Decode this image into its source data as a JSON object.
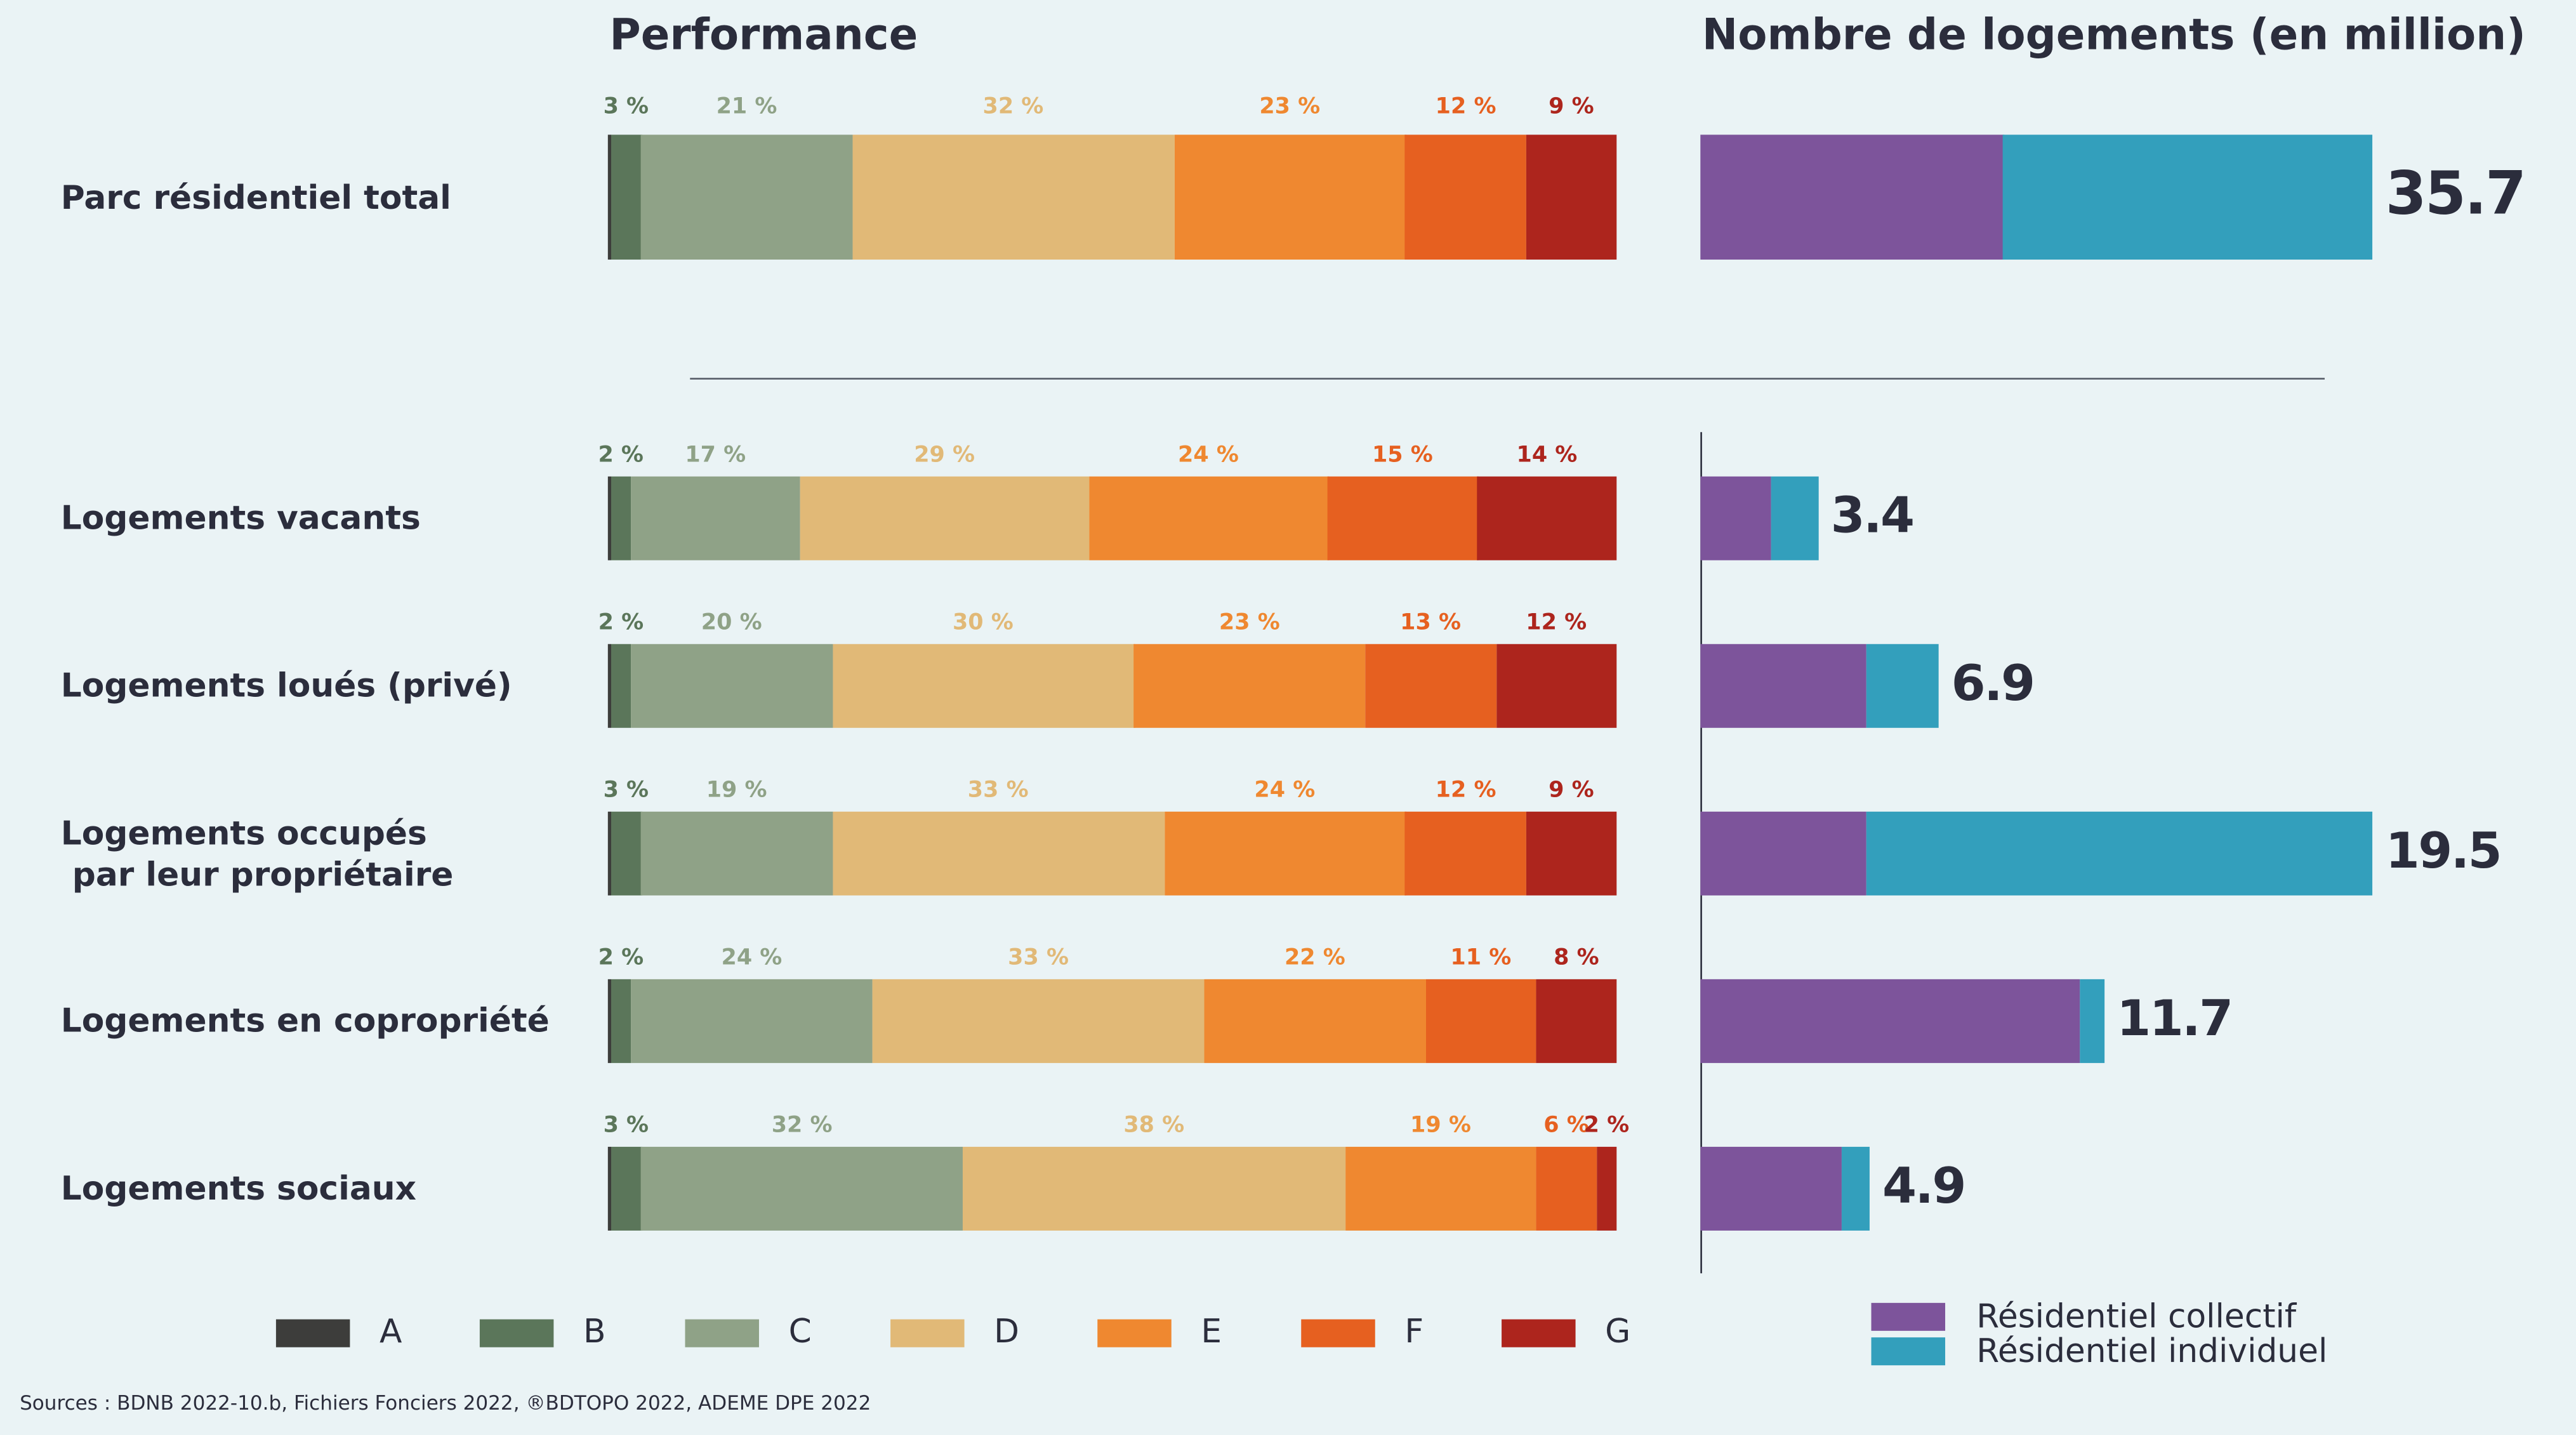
{
  "titles": {
    "performance": "Performance",
    "count": "Nombre de logements (en million)"
  },
  "classes": [
    "A",
    "B",
    "C",
    "D",
    "E",
    "F",
    "G"
  ],
  "class_colors": [
    "#3d3d3b",
    "#5b765a",
    "#8fa287",
    "#e1b977",
    "#ef8830",
    "#e66020",
    "#ad251d"
  ],
  "housing_series": [
    {
      "name": "Résidentiel collectif",
      "color": "#7d549b"
    },
    {
      "name": "Résidentiel individuel",
      "color": "#339fbc"
    }
  ],
  "sources": "Sources : BDNB 2022-10.b, Fichiers Fonciers 2022, ®BDTOPO 2022, ADEME DPE 2022",
  "chart_data": [
    {
      "type": "bar",
      "stacked": true,
      "orientation": "horizontal",
      "title": "Performance",
      "categories": [
        "Parc résidentiel total",
        "Logements vacants",
        "Logements loués (privé)",
        "Logements occupés par leur propriétaire",
        "Logements en copropriété",
        "Logements sociaux"
      ],
      "category_lines": [
        [
          "Parc résidentiel total"
        ],
        [
          "Logements vacants"
        ],
        [
          "Logements loués (privé)"
        ],
        [
          "Logements occupés",
          " par leur propriétaire"
        ],
        [
          "Logements en copropriété"
        ],
        [
          "Logements sociaux"
        ]
      ],
      "series_names": [
        "A",
        "B",
        "C",
        "D",
        "E",
        "F",
        "G"
      ],
      "values_percent": [
        [
          0.3,
          3,
          21,
          32,
          23,
          12,
          9
        ],
        [
          0.3,
          2,
          17,
          29,
          24,
          15,
          14
        ],
        [
          0.3,
          2,
          20,
          30,
          23,
          13,
          12
        ],
        [
          0.3,
          3,
          19,
          33,
          24,
          12,
          9
        ],
        [
          0.3,
          2,
          24,
          33,
          22,
          11,
          8
        ],
        [
          0.3,
          3,
          32,
          38,
          19,
          6,
          2
        ]
      ],
      "labels": [
        [
          "3 %",
          "21 %",
          "32 %",
          "23 %",
          "12 %",
          "9 %"
        ],
        [
          "2 %",
          "17 %",
          "29 %",
          "24 %",
          "15 %",
          "14 %"
        ],
        [
          "2 %",
          "20 %",
          "30 %",
          "23 %",
          "13 %",
          "12 %"
        ],
        [
          "3 %",
          "19 %",
          "33 %",
          "24 %",
          "12 %",
          "9 %"
        ],
        [
          "2 %",
          "24 %",
          "33 %",
          "22 %",
          "11 %",
          "8 %"
        ],
        [
          "3 %",
          "32 %",
          "38 %",
          "19 %",
          "6 %",
          "2 %"
        ]
      ]
    },
    {
      "type": "bar",
      "stacked": true,
      "orientation": "horizontal",
      "title": "Nombre de logements (en million)",
      "series_names": [
        "Résidentiel collectif",
        "Résidentiel individuel"
      ],
      "values": [
        [
          16.1,
          19.6
        ],
        [
          2.05,
          1.35
        ],
        [
          4.8,
          2.1
        ],
        [
          4.8,
          14.7
        ],
        [
          11.0,
          0.7
        ],
        [
          4.1,
          0.8
        ]
      ],
      "totals": [
        "35.7",
        "3.4",
        "6.9",
        "19.5",
        "11.7",
        "4.9"
      ]
    }
  ]
}
